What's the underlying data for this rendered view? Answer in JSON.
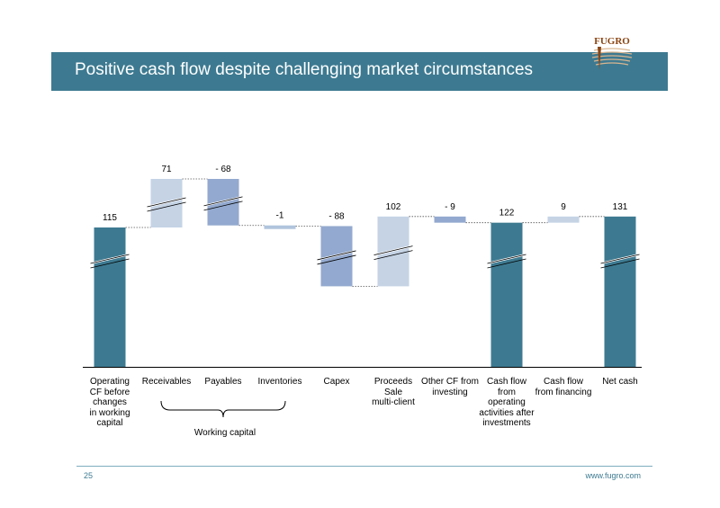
{
  "slide": {
    "title": "Positive cash flow despite challenging market circumstances",
    "page_number": "25",
    "website": "www.fugro.com",
    "logo_text": "FUGRO"
  },
  "chart_data": {
    "type": "bar",
    "subtype": "waterfall",
    "title": "",
    "xlabel": "",
    "ylabel": "",
    "categories": [
      "Operating CF before changes in working capital",
      "Receivables",
      "Payables",
      "Inventories",
      "Capex",
      "Proceeds Sale multi-client",
      "Other CF from investing",
      "Cash flow from operating activities after investments",
      "Cash flow from financing",
      "Net cash"
    ],
    "category_lines": [
      [
        "Operating",
        "CF before",
        "changes",
        "in working",
        "capital"
      ],
      [
        "Receivables"
      ],
      [
        "Payables"
      ],
      [
        "Inventories"
      ],
      [
        "Capex"
      ],
      [
        "Proceeds",
        "Sale",
        "multi-client"
      ],
      [
        "Other CF from",
        "investing"
      ],
      [
        "Cash flow",
        "from",
        "operating",
        "activities after",
        "investments"
      ],
      [
        "Cash flow",
        "from financing"
      ],
      [
        "Net cash"
      ]
    ],
    "values": [
      115,
      71,
      -68,
      -1,
      -88,
      102,
      -9,
      122,
      9,
      131
    ],
    "labels": [
      "115",
      "71",
      "- 68",
      "-1",
      "- 88",
      "102",
      "- 9",
      "122",
      "9",
      "131"
    ],
    "kinds": [
      "total",
      "delta",
      "delta",
      "delta",
      "delta",
      "delta",
      "delta",
      "total",
      "delta",
      "total"
    ],
    "axis_break": true,
    "grid": false,
    "legend": "none",
    "group_bracket": {
      "label": "Working capital",
      "from": "Receivables",
      "to": "Inventories"
    },
    "colors": {
      "total": "#3d7a91",
      "positive": "#c5d3e5",
      "negative": "#93a9cf",
      "inventories": "#b0c4dd"
    }
  }
}
